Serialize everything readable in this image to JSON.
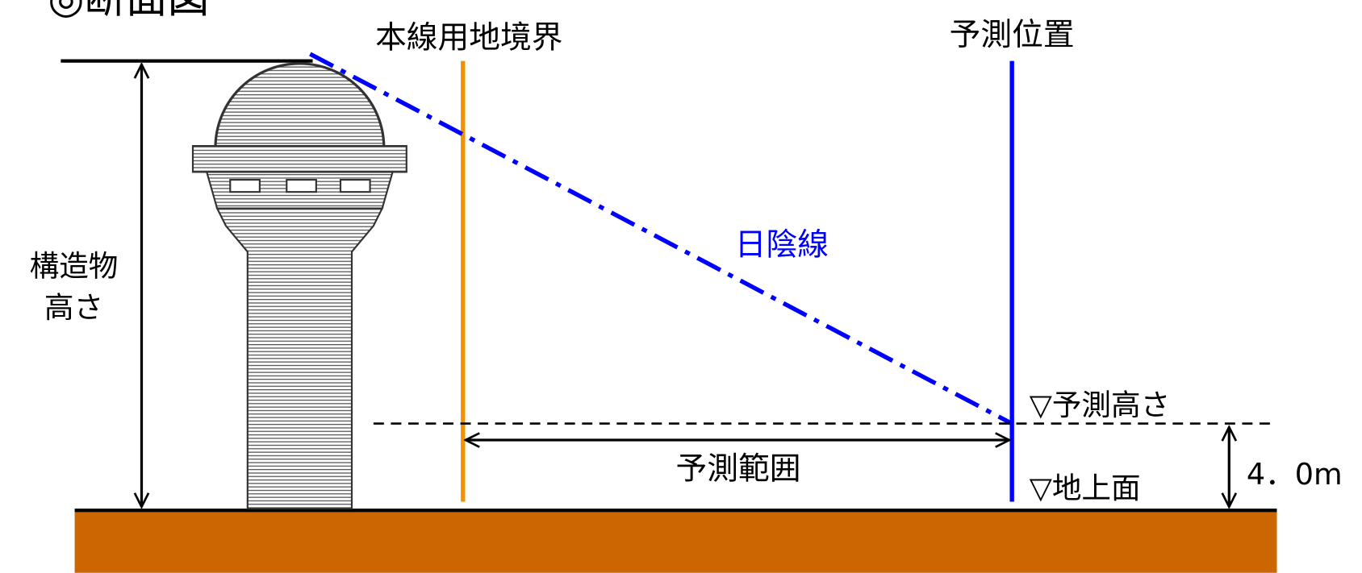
{
  "title": "◎断面図",
  "labels": {
    "boundary": "本線用地境界",
    "prediction_position": "予測位置",
    "shadow_line": "日陰線",
    "structure_height": [
      "構造物",
      "高さ"
    ],
    "prediction_height": "▽予測高さ",
    "prediction_range": "予測範囲",
    "ground_level": "▽地上面",
    "height_value": "4．0m"
  }
}
